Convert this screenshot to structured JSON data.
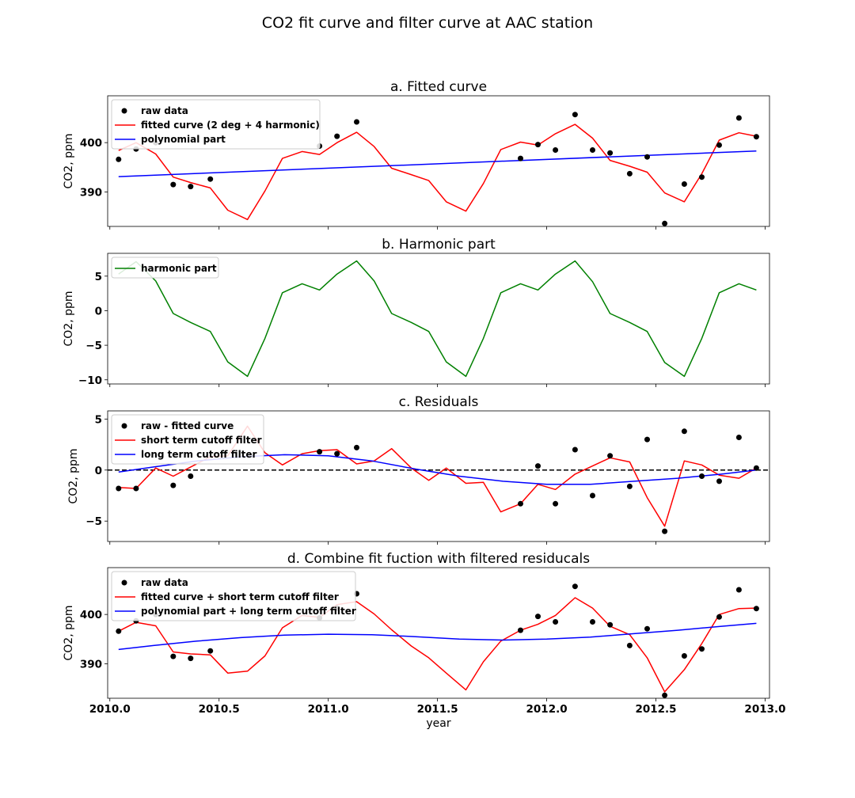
{
  "figure_title": "CO2 fit curve and filter curve at AAC station",
  "chart_data": [
    {
      "type": "line",
      "title": "a. Fitted curve",
      "xlabel": "",
      "ylabel": "CO2, ppm",
      "xlim": [
        2009.99,
        2013.02
      ],
      "ylim": [
        383.0,
        409.5
      ],
      "yticks": [
        390,
        400
      ],
      "xticks": [
        2010.0,
        2010.5,
        2011.0,
        2011.5,
        2012.0,
        2012.5,
        2013.0
      ],
      "xtick_labels": [],
      "legend": "upper-left",
      "series": [
        {
          "name": "raw data",
          "kind": "scatter",
          "color": "#000000",
          "x": [
            2010.04,
            2010.12,
            2010.21,
            2010.29,
            2010.37,
            2010.46,
            2010.96,
            2011.04,
            2011.13,
            2011.88,
            2011.96,
            2012.04,
            2012.13,
            2012.21,
            2012.29,
            2012.38,
            2012.46,
            2012.54,
            2012.63,
            2012.71,
            2012.79,
            2012.88,
            2012.96
          ],
          "y": [
            396.6,
            398.7,
            400.0,
            391.5,
            391.1,
            392.6,
            399.3,
            401.3,
            404.2,
            396.8,
            399.6,
            398.5,
            405.7,
            398.5,
            397.9,
            393.7,
            397.1,
            383.6,
            391.6,
            393.0,
            399.5,
            405.0,
            401.2
          ]
        },
        {
          "name": "fitted curve (2 deg + 4 harmonic)",
          "kind": "line",
          "color": "#ff0000",
          "x": [
            2010.04,
            2010.12,
            2010.21,
            2010.29,
            2010.37,
            2010.46,
            2010.54,
            2010.63,
            2010.71,
            2010.79,
            2010.88,
            2010.96,
            2011.04,
            2011.13,
            2011.21,
            2011.29,
            2011.38,
            2011.46,
            2011.54,
            2011.63,
            2011.71,
            2011.79,
            2011.88,
            2011.96,
            2012.04,
            2012.13,
            2012.21,
            2012.29,
            2012.38,
            2012.46,
            2012.54,
            2012.63,
            2012.71,
            2012.79,
            2012.88,
            2012.96
          ],
          "y": [
            398.4,
            400.0,
            397.7,
            393.0,
            391.9,
            390.8,
            386.3,
            384.4,
            390.2,
            396.8,
            398.2,
            397.6,
            400.0,
            402.1,
            399.2,
            394.8,
            393.5,
            392.3,
            388.0,
            386.1,
            391.7,
            398.6,
            400.1,
            399.5,
            401.8,
            403.7,
            400.9,
            396.4,
            395.2,
            394.0,
            389.8,
            388.0,
            393.7,
            400.5,
            402.0,
            401.3
          ]
        },
        {
          "name": "polynomial part",
          "kind": "line",
          "color": "#0000ff",
          "x": [
            2010.04,
            2012.96
          ],
          "y": [
            393.1,
            398.3
          ]
        }
      ]
    },
    {
      "type": "line",
      "title": "b. Harmonic part",
      "xlabel": "",
      "ylabel": "CO2, ppm",
      "xlim": [
        2009.99,
        2013.02
      ],
      "ylim": [
        -10.6,
        8.3
      ],
      "yticks": [
        -10,
        -5,
        0,
        5
      ],
      "xticks": [
        2010.0,
        2010.5,
        2011.0,
        2011.5,
        2012.0,
        2012.5,
        2013.0
      ],
      "xtick_labels": [],
      "legend": "upper-left",
      "series": [
        {
          "name": "harmonic part",
          "kind": "line",
          "color": "#008000",
          "x": [
            2010.04,
            2010.12,
            2010.21,
            2010.29,
            2010.37,
            2010.46,
            2010.54,
            2010.63,
            2010.71,
            2010.79,
            2010.88,
            2010.96,
            2011.04,
            2011.13,
            2011.21,
            2011.29,
            2011.38,
            2011.46,
            2011.54,
            2011.63,
            2011.71,
            2011.79,
            2011.88,
            2011.96,
            2012.04,
            2012.13,
            2012.21,
            2012.29,
            2012.38,
            2012.46,
            2012.54,
            2012.63,
            2012.71,
            2012.79,
            2012.88,
            2012.96
          ],
          "y": [
            5.3,
            7.1,
            4.3,
            -0.4,
            -1.7,
            -3.0,
            -7.4,
            -9.5,
            -4.0,
            2.6,
            3.9,
            3.0,
            5.3,
            7.2,
            4.3,
            -0.4,
            -1.7,
            -3.0,
            -7.4,
            -9.5,
            -4.0,
            2.6,
            3.9,
            3.0,
            5.3,
            7.2,
            4.2,
            -0.4,
            -1.7,
            -3.0,
            -7.5,
            -9.5,
            -4.0,
            2.6,
            3.9,
            3.0
          ]
        }
      ]
    },
    {
      "type": "line",
      "title": "c. Residuals",
      "xlabel": "",
      "ylabel": "CO2, ppm",
      "xlim": [
        2009.99,
        2013.02
      ],
      "ylim": [
        -7.0,
        5.8
      ],
      "yticks": [
        -5,
        0,
        5
      ],
      "xticks": [
        2010.0,
        2010.5,
        2011.0,
        2011.5,
        2012.0,
        2012.5,
        2013.0
      ],
      "xtick_labels": [],
      "legend": "upper-left",
      "hline": {
        "y": 0,
        "style": "dashed",
        "color": "#000000"
      },
      "series": [
        {
          "name": "raw - fitted curve",
          "kind": "scatter",
          "color": "#000000",
          "x": [
            2010.04,
            2010.12,
            2010.29,
            2010.37,
            2010.96,
            2011.04,
            2011.13,
            2011.88,
            2011.96,
            2012.04,
            2012.13,
            2012.21,
            2012.29,
            2012.38,
            2012.46,
            2012.54,
            2012.63,
            2012.71,
            2012.79,
            2012.88,
            2012.96
          ],
          "y": [
            -1.8,
            -1.8,
            -1.5,
            -0.6,
            1.8,
            1.6,
            2.2,
            -3.3,
            0.4,
            -3.3,
            2.0,
            -2.5,
            1.4,
            -1.6,
            3.0,
            -6.0,
            3.8,
            -0.6,
            -1.1,
            3.2,
            0.2
          ]
        },
        {
          "name": "short term cutoff filter",
          "kind": "line",
          "color": "#ff0000",
          "x": [
            2010.04,
            2010.12,
            2010.21,
            2010.29,
            2010.37,
            2010.46,
            2010.54,
            2010.63,
            2010.71,
            2010.79,
            2010.88,
            2010.96,
            2011.04,
            2011.13,
            2011.21,
            2011.29,
            2011.38,
            2011.46,
            2011.54,
            2011.63,
            2011.71,
            2011.79,
            2011.88,
            2011.96,
            2012.04,
            2012.13,
            2012.21,
            2012.29,
            2012.38,
            2012.46,
            2012.54,
            2012.63,
            2012.71,
            2012.79,
            2012.88,
            2012.96
          ],
          "y": [
            -1.7,
            -1.8,
            0.2,
            -0.6,
            0.3,
            1.3,
            1.4,
            4.3,
            1.7,
            0.5,
            1.6,
            1.9,
            2.0,
            0.6,
            0.9,
            2.1,
            0.2,
            -1.0,
            0.2,
            -1.3,
            -1.2,
            -4.1,
            -3.3,
            -1.4,
            -1.9,
            -0.4,
            0.4,
            1.2,
            0.8,
            -2.7,
            -5.5,
            0.9,
            0.5,
            -0.5,
            -0.8,
            0.2
          ]
        },
        {
          "name": "long term cutoff filter",
          "kind": "line",
          "color": "#0000ff",
          "x": [
            2010.04,
            2010.2,
            2010.4,
            2010.6,
            2010.8,
            2011.0,
            2011.2,
            2011.4,
            2011.6,
            2011.8,
            2012.0,
            2012.2,
            2012.4,
            2012.6,
            2012.8,
            2012.96
          ],
          "y": [
            -0.2,
            0.3,
            0.9,
            1.3,
            1.5,
            1.4,
            0.9,
            0.1,
            -0.6,
            -1.1,
            -1.4,
            -1.4,
            -1.1,
            -0.8,
            -0.4,
            0.0
          ]
        }
      ]
    },
    {
      "type": "line",
      "title": "d. Combine fit fuction with filtered residucals",
      "xlabel": "year",
      "ylabel": "CO2, ppm",
      "xlim": [
        2009.99,
        2013.02
      ],
      "ylim": [
        383.0,
        409.5
      ],
      "yticks": [
        390,
        400
      ],
      "xticks": [
        2010.0,
        2010.5,
        2011.0,
        2011.5,
        2012.0,
        2012.5,
        2013.0
      ],
      "xtick_labels": [
        "2010.0",
        "2010.5",
        "2011.0",
        "2011.5",
        "2012.0",
        "2012.5",
        "2013.0"
      ],
      "legend": "upper-left",
      "series": [
        {
          "name": "raw data",
          "kind": "scatter",
          "color": "#000000",
          "x": [
            2010.04,
            2010.12,
            2010.21,
            2010.29,
            2010.37,
            2010.46,
            2010.96,
            2011.04,
            2011.13,
            2011.88,
            2011.96,
            2012.04,
            2012.13,
            2012.21,
            2012.29,
            2012.38,
            2012.46,
            2012.54,
            2012.63,
            2012.71,
            2012.79,
            2012.88,
            2012.96
          ],
          "y": [
            396.6,
            398.7,
            400.0,
            391.5,
            391.1,
            392.6,
            399.3,
            401.3,
            404.2,
            396.8,
            399.6,
            398.5,
            405.7,
            398.5,
            397.9,
            393.7,
            397.1,
            383.6,
            391.6,
            393.0,
            399.5,
            405.0,
            401.2
          ]
        },
        {
          "name": "fitted curve + short term cutoff filter",
          "kind": "line",
          "color": "#ff0000",
          "x": [
            2010.04,
            2010.12,
            2010.21,
            2010.29,
            2010.37,
            2010.46,
            2010.54,
            2010.63,
            2010.71,
            2010.79,
            2010.88,
            2010.96,
            2011.04,
            2011.13,
            2011.21,
            2011.29,
            2011.38,
            2011.46,
            2011.54,
            2011.63,
            2011.71,
            2011.79,
            2011.88,
            2011.96,
            2012.04,
            2012.13,
            2012.21,
            2012.29,
            2012.38,
            2012.46,
            2012.54,
            2012.63,
            2012.71,
            2012.79,
            2012.88,
            2012.96
          ],
          "y": [
            396.6,
            398.4,
            397.7,
            392.4,
            392.0,
            391.8,
            388.1,
            388.5,
            391.6,
            397.3,
            399.8,
            399.4,
            402.0,
            402.6,
            400.1,
            396.9,
            393.6,
            391.2,
            388.1,
            384.7,
            390.4,
            394.6,
            396.8,
            398.0,
            399.8,
            403.4,
            401.3,
            397.6,
            395.9,
            391.2,
            384.3,
            388.8,
            394.1,
            400.0,
            401.2,
            401.3
          ]
        },
        {
          "name": "polynomial part + long term cutoff filter",
          "kind": "line",
          "color": "#0000ff",
          "x": [
            2010.04,
            2010.2,
            2010.4,
            2010.6,
            2010.8,
            2011.0,
            2011.2,
            2011.4,
            2011.6,
            2011.8,
            2012.0,
            2012.2,
            2012.4,
            2012.6,
            2012.8,
            2012.96
          ],
          "y": [
            392.9,
            393.7,
            394.6,
            395.3,
            395.8,
            396.0,
            395.9,
            395.5,
            395.0,
            394.8,
            395.0,
            395.4,
            396.1,
            396.8,
            397.6,
            398.2
          ]
        }
      ]
    }
  ]
}
